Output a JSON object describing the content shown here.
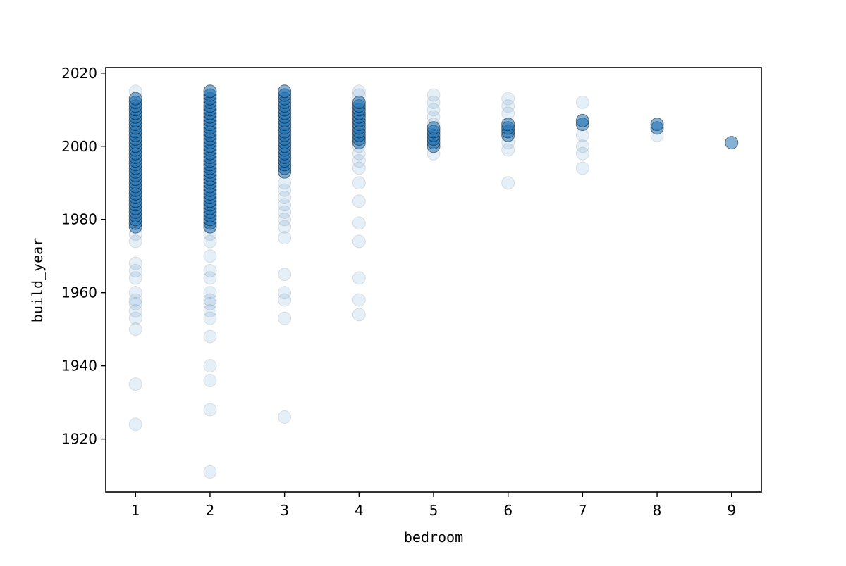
{
  "chart_data": {
    "type": "scatter",
    "title": "",
    "xlabel": "bedroom",
    "ylabel": "build_year",
    "xlim": [
      0.6,
      9.4
    ],
    "ylim": [
      1905.5,
      2021.5
    ],
    "x_ticks": [
      1,
      2,
      3,
      4,
      5,
      6,
      7,
      8,
      9
    ],
    "y_ticks": [
      1920,
      1940,
      1960,
      1980,
      2000,
      2020
    ],
    "grid": false,
    "legend": "none",
    "marker_color": "#1f77b4",
    "marker_alpha": 0.02,
    "points_by_bedroom": [
      {
        "bedroom": 1,
        "build_year_dense_range": [
          1978,
          2013
        ],
        "build_year_sparse": [
          2015,
          1976,
          1974,
          1968,
          1966,
          1964,
          1960,
          1958,
          1957,
          1955,
          1953,
          1950,
          1935,
          1924
        ]
      },
      {
        "bedroom": 2,
        "build_year_dense_range": [
          1978,
          2015
        ],
        "build_year_sparse": [
          1976,
          1974,
          1970,
          1966,
          1964,
          1960,
          1958,
          1957,
          1955,
          1953,
          1948,
          1940,
          1936,
          1928,
          1911
        ]
      },
      {
        "bedroom": 3,
        "build_year_dense_range": [
          1993,
          2015
        ],
        "build_year_sparse": [
          1990,
          1988,
          1986,
          1984,
          1982,
          1980,
          1978,
          1975,
          1965,
          1960,
          1958,
          1953,
          1926
        ]
      },
      {
        "bedroom": 4,
        "build_year_dense_range": [
          2001,
          2012
        ],
        "build_year_sparse": [
          2015,
          2014,
          2000,
          1998,
          1996,
          1994,
          1990,
          1985,
          1979,
          1974,
          1964,
          1958,
          1954
        ]
      },
      {
        "bedroom": 5,
        "build_year_dense_range": [
          2000,
          2005
        ],
        "build_year_sparse": [
          2014,
          2012,
          2010,
          2008,
          2006,
          1998
        ]
      },
      {
        "bedroom": 6,
        "build_year_dense_range": [
          2003,
          2006
        ],
        "build_year_sparse": [
          2013,
          2011,
          2009,
          2001,
          1999,
          1990
        ]
      },
      {
        "bedroom": 7,
        "build_year_dense_range": [
          2006,
          2007
        ],
        "build_year_sparse": [
          2012,
          2003,
          2000,
          1998,
          1994
        ]
      },
      {
        "bedroom": 8,
        "build_year_dense_range": [
          2005,
          2006
        ],
        "build_year_sparse": [
          2003
        ]
      },
      {
        "bedroom": 9,
        "build_year_dense_range": [
          2001,
          2001
        ],
        "build_year_sparse": []
      }
    ]
  }
}
